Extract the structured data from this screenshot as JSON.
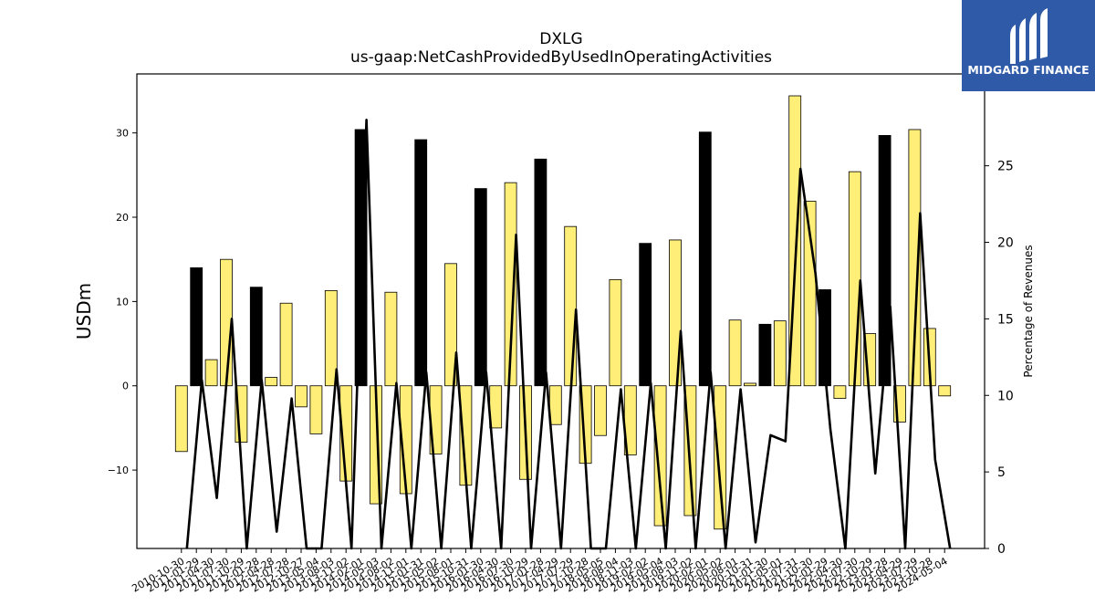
{
  "chart_data": {
    "type": "bar",
    "title": "DXLG",
    "subtitle": "us-gaap:NetCashProvidedByUsedInOperatingActivities",
    "ylabel": "USDm",
    "y2label": "Percentage of Revenues",
    "ylim": [
      -19.3,
      37.0
    ],
    "y2lim": [
      0,
      31
    ],
    "yticks": [
      -10,
      0,
      10,
      20,
      30
    ],
    "y2ticks": [
      0,
      5,
      10,
      15,
      20,
      25
    ],
    "categories": [
      "2010-10-30",
      "2011-01-29",
      "2011-04-30",
      "2011-07-30",
      "2011-10-29",
      "2012-01-28",
      "2012-04-28",
      "2012-07-28",
      "2012-10-27",
      "2013-05-04",
      "2013-08-03",
      "2013-11-02",
      "2014-02-01",
      "2014-05-03",
      "2014-08-02",
      "2014-11-01",
      "2015-01-31",
      "2015-05-02",
      "2015-08-01",
      "2015-10-31",
      "2016-01-30",
      "2016-04-30",
      "2016-07-30",
      "2016-10-29",
      "2017-01-28",
      "2017-04-29",
      "2017-07-29",
      "2017-10-28",
      "2018-05-05",
      "2018-08-04",
      "2018-11-03",
      "2019-02-02",
      "2019-05-04",
      "2019-08-03",
      "2019-11-02",
      "2020-02-01",
      "2020-05-02",
      "2020-08-01",
      "2020-10-31",
      "2021-01-30",
      "2021-05-01",
      "2021-07-31",
      "2021-10-30",
      "2022-01-29",
      "2022-04-30",
      "2022-07-30",
      "2022-10-29",
      "2023-01-28",
      "2023-04-29",
      "2023-07-29",
      "2023-10-28",
      "2024-05-04"
    ],
    "series": [
      {
        "values": [
          -7.8,
          14.0,
          3.1,
          15.0,
          -6.7,
          11.7,
          1.0,
          9.8,
          -2.5,
          -5.7,
          11.3,
          -11.3,
          30.4,
          -14.0,
          11.1,
          -12.8,
          29.2,
          -8.1,
          14.5,
          -11.8,
          23.4,
          -5.0,
          24.1,
          -11.1,
          26.9,
          -4.6,
          18.9,
          -9.2,
          -5.9,
          12.6,
          -8.2,
          16.9,
          -16.6,
          17.3,
          -15.4,
          30.1,
          -17.0,
          7.8,
          0.3,
          7.3,
          7.7,
          34.4,
          21.9,
          11.4,
          -1.5,
          25.4,
          6.2,
          29.7,
          -4.3,
          30.4,
          6.8,
          -1.2
        ],
        "colors": [
          "#ffee77",
          "#000000",
          "#ffee77",
          "#ffee77",
          "#ffee77",
          "#000000",
          "#ffee77",
          "#ffee77",
          "#ffee77",
          "#ffee77",
          "#ffee77",
          "#ffee77",
          "#000000",
          "#ffee77",
          "#ffee77",
          "#ffee77",
          "#000000",
          "#ffee77",
          "#ffee77",
          "#ffee77",
          "#000000",
          "#ffee77",
          "#ffee77",
          "#ffee77",
          "#000000",
          "#ffee77",
          "#ffee77",
          "#ffee77",
          "#ffee77",
          "#ffee77",
          "#ffee77",
          "#000000",
          "#ffee77",
          "#ffee77",
          "#ffee77",
          "#000000",
          "#ffee77",
          "#ffee77",
          "#ffee77",
          "#000000",
          "#ffee77",
          "#ffee77",
          "#ffee77",
          "#000000",
          "#ffee77",
          "#ffee77",
          "#ffee77",
          "#000000",
          "#ffee77",
          "#ffee77",
          "#ffee77",
          "#ffee77"
        ]
      },
      {
        "axis": "right",
        "type": "line",
        "values": [
          0,
          11.0,
          3.3,
          15.0,
          0,
          11.0,
          1.1,
          9.8,
          0,
          0,
          11.7,
          0,
          28.0,
          0,
          10.8,
          0,
          11.5,
          0,
          12.8,
          0,
          11.5,
          0,
          20.5,
          0,
          11.5,
          0,
          15.6,
          0,
          0,
          10.4,
          0,
          10.8,
          0,
          14.2,
          0,
          11.5,
          0,
          10.4,
          0.4,
          7.4,
          7.0,
          24.8,
          18.0,
          7.8,
          0,
          17.5,
          4.9,
          15.8,
          0,
          21.9,
          5.8,
          0
        ]
      }
    ],
    "line_color": "#000000"
  },
  "logo": {
    "text": "MIDGARD FINANCE",
    "bg": "#2f5aa8"
  }
}
